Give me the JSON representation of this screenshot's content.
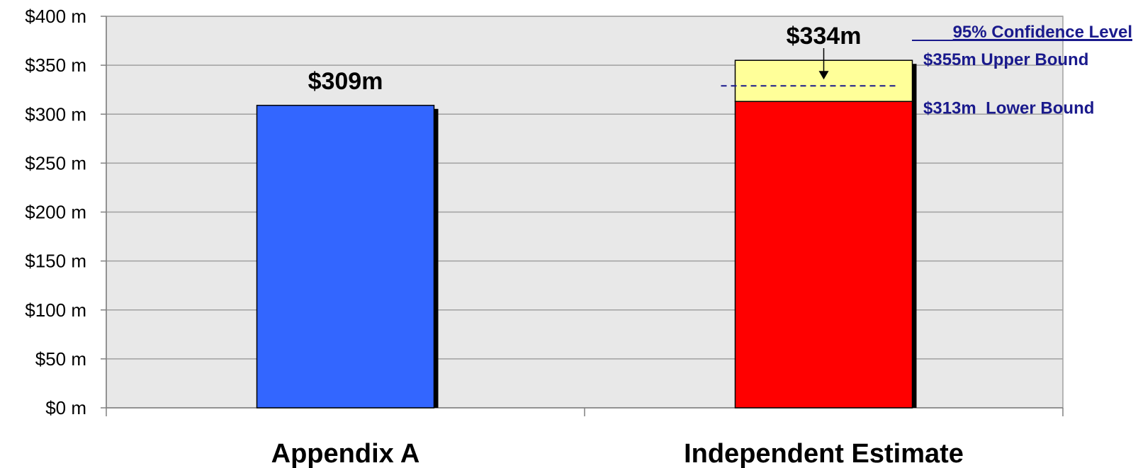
{
  "chart_data": {
    "type": "bar",
    "title": "",
    "xlabel": "",
    "ylabel": "",
    "categories": [
      "Appendix A",
      "Independent Estimate"
    ],
    "series": [
      {
        "values": [
          309,
          313
        ],
        "colors": [
          "#3366ff",
          "#ff0000"
        ]
      },
      {
        "values": [
          0,
          42
        ],
        "colors": [
          "#ffff99",
          "#ffff99"
        ]
      }
    ],
    "point_estimate": 334,
    "ylim": [
      0,
      400
    ],
    "yticks": [
      0,
      50,
      100,
      150,
      200,
      250,
      300,
      350,
      400
    ],
    "ytick_labels": [
      "$0 m",
      "$50 m",
      "$100 m",
      "$150 m",
      "$200 m",
      "$250 m",
      "$300 m",
      "$350 m",
      "$400 m"
    ],
    "data_labels": [
      "$309m",
      "$334m"
    ],
    "confidence": {
      "title": "95% Confidence Level",
      "upper_value": 355,
      "lower_value": 313,
      "upper_label": "$355m Upper Bound",
      "lower_label": "$313m  Lower Bound"
    },
    "grid": true,
    "plot_background": "#e8e8e8",
    "gridline_color": "#a0a0a0",
    "annotation_color": "#1a1a8c",
    "dashed_line_color": "#1a1a8c"
  }
}
